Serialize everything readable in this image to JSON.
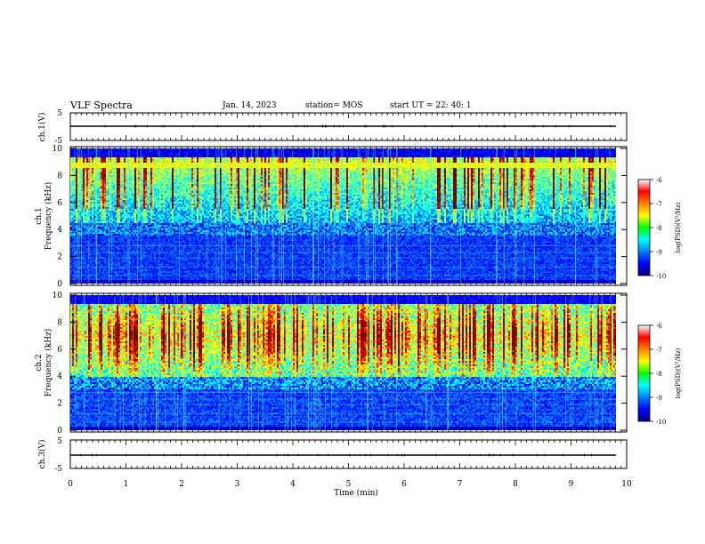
{
  "header": {
    "title": "VLF Spectra",
    "date": "Jan. 14, 2023",
    "station": "station= MOS",
    "start": "start  UT  =   22: 40: 1"
  },
  "chart_data": [
    {
      "type": "line",
      "name": "ch1-voltage",
      "ylabel": "ch.1(V)",
      "ylim": [
        -5,
        5
      ],
      "yticks": [
        "5",
        "-5"
      ],
      "xlim": [
        0,
        10
      ],
      "x": [
        0,
        9.8
      ],
      "y": [
        -1,
        -1
      ]
    },
    {
      "type": "heatmap",
      "name": "ch1-spectrogram",
      "ylabel_line1": "ch.1",
      "ylabel_line2": "Frequency (kHz)",
      "ylim": [
        0,
        10
      ],
      "yticks": [
        "0",
        "2",
        "4",
        "6",
        "8",
        "10"
      ],
      "xlim": [
        0,
        9.8
      ],
      "colorbar": {
        "label": "log(PSD)(V²/Hz)",
        "range": [
          -10,
          -6
        ],
        "ticks": [
          "-6",
          "-7",
          "-8",
          "-9",
          "-10"
        ]
      }
    },
    {
      "type": "heatmap",
      "name": "ch2-spectrogram",
      "ylabel_line1": "ch.2",
      "ylabel_line2": "Frequency (kHz)",
      "ylim": [
        0,
        10
      ],
      "yticks": [
        "0",
        "2",
        "4",
        "6",
        "8",
        "10"
      ],
      "xlim": [
        0,
        9.8
      ],
      "colorbar": {
        "label": "log(PSD)(V²/Hz)",
        "range": [
          -10,
          -6
        ],
        "ticks": [
          "-6",
          "-7",
          "-8",
          "-9",
          "-10"
        ]
      }
    },
    {
      "type": "line",
      "name": "ch3-voltage",
      "ylabel": "ch.3(V)",
      "ylim": [
        -5,
        5
      ],
      "yticks": [
        "5",
        "-5"
      ],
      "xlim": [
        0,
        10
      ],
      "x": [
        0,
        9.8
      ],
      "y": [
        -1,
        -1
      ]
    }
  ],
  "xaxis": {
    "label": "Time (min)",
    "ticks": [
      "0",
      "1",
      "2",
      "3",
      "4",
      "5",
      "6",
      "7",
      "8",
      "9",
      "10"
    ]
  }
}
